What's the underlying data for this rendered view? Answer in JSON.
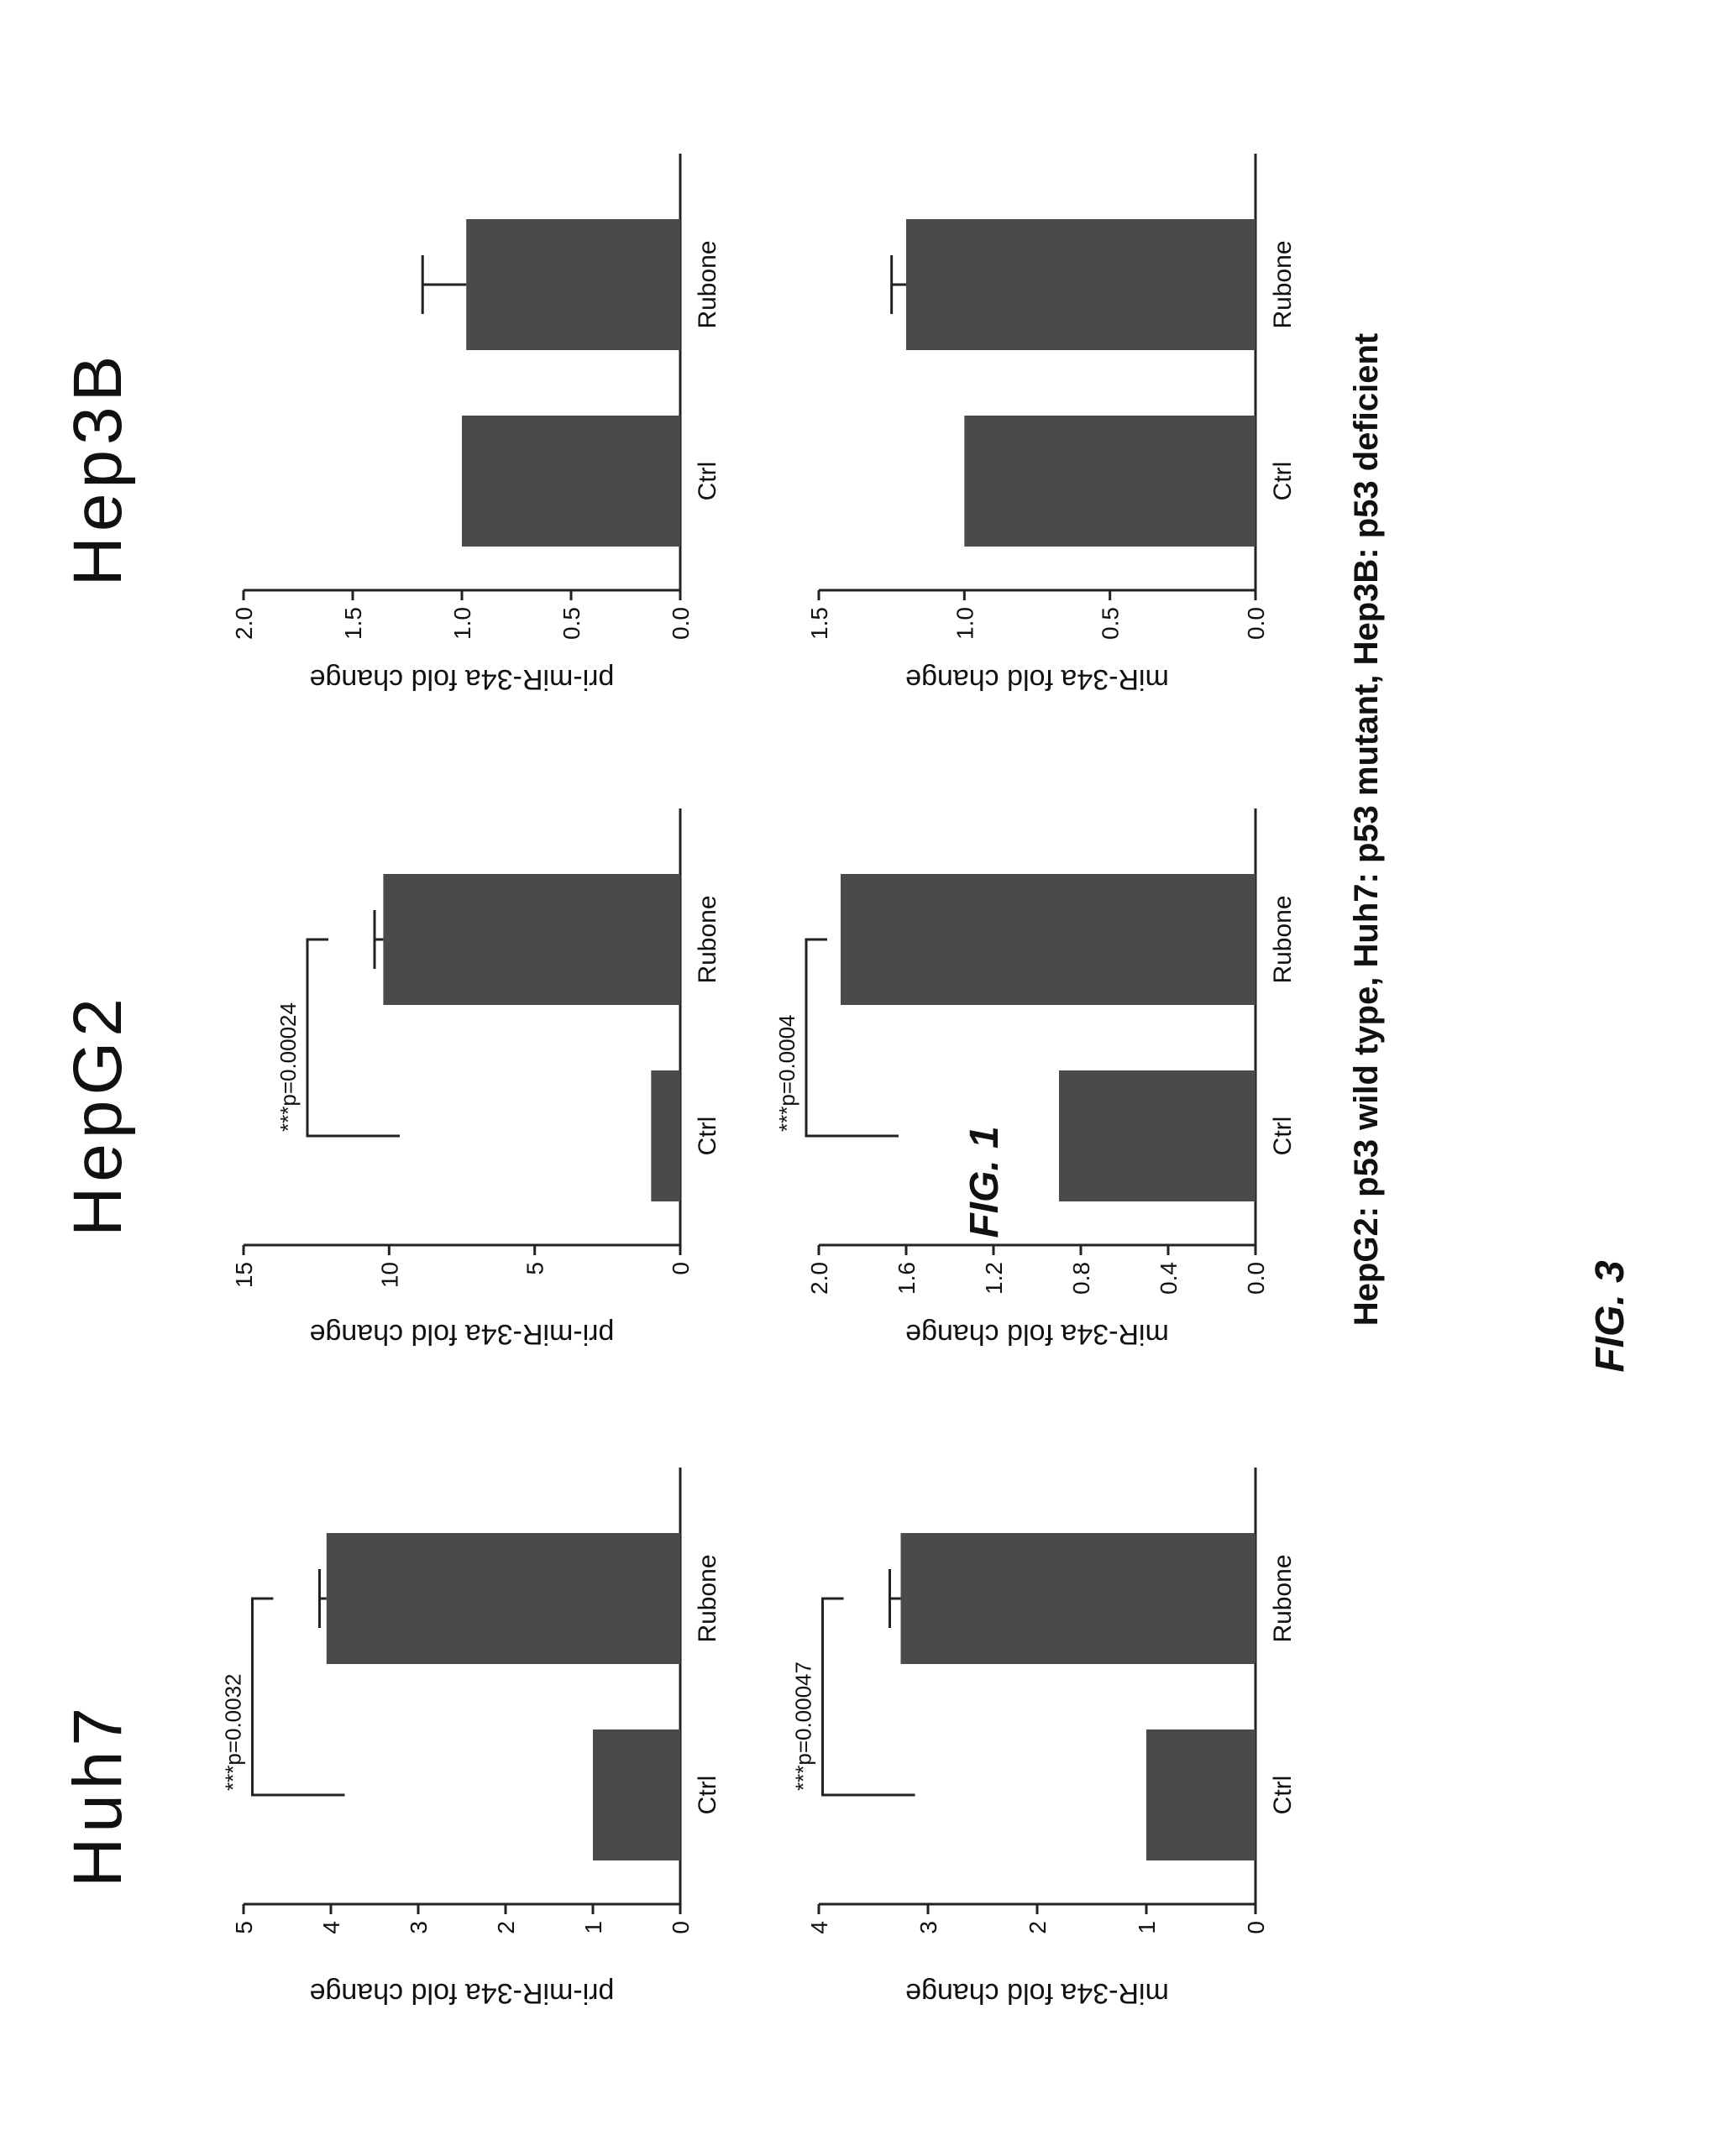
{
  "figure": {
    "caption": "HepG2: p53 wild type, Huh7: p53 mutant, Hep3B: p53 deficient",
    "figure_label": "FIG. 3",
    "overlay_label": "FIG. 1",
    "column_titles": [
      "Huh7",
      "HepG2",
      "Hep3B"
    ]
  },
  "colors": {
    "bar": "#4a4a4a",
    "axis": "#222222",
    "text": "#111111"
  },
  "chart_data": [
    {
      "type": "bar",
      "title": "Huh7",
      "ylabel": "pri-miR-34a fold change",
      "categories": [
        "Ctrl",
        "Rubone"
      ],
      "values": [
        1.0,
        4.05
      ],
      "errors": [
        0,
        0.08
      ],
      "ylim": [
        0,
        5
      ],
      "yticks": [
        "0",
        "1",
        "2",
        "3",
        "4",
        "5"
      ],
      "annotation": "***p=0.0032",
      "grid": false
    },
    {
      "type": "bar",
      "title": "HepG2",
      "ylabel": "pri-miR-34a fold change",
      "categories": [
        "Ctrl",
        "Rubone"
      ],
      "values": [
        1.0,
        10.2
      ],
      "errors": [
        0,
        0.3
      ],
      "ylim": [
        0,
        15
      ],
      "yticks": [
        "0",
        "5",
        "10",
        "15"
      ],
      "annotation": "***p=0.00024",
      "grid": false
    },
    {
      "type": "bar",
      "title": "Hep3B",
      "ylabel": "pri-miR-34a fold change",
      "categories": [
        "Ctrl",
        "Rubone"
      ],
      "values": [
        1.0,
        0.98
      ],
      "errors": [
        0,
        0.2
      ],
      "ylim": [
        0,
        2.0
      ],
      "yticks": [
        "0.0",
        "0.5",
        "1.0",
        "1.5",
        "2.0"
      ],
      "annotation": "",
      "grid": false
    },
    {
      "type": "bar",
      "title": "Huh7",
      "ylabel": "miR-34a fold change",
      "categories": [
        "Ctrl",
        "Rubone"
      ],
      "values": [
        1.0,
        3.25
      ],
      "errors": [
        0,
        0.1
      ],
      "ylim": [
        0,
        4
      ],
      "yticks": [
        "0",
        "1",
        "2",
        "3",
        "4"
      ],
      "annotation": "***p=0.00047",
      "grid": false
    },
    {
      "type": "bar",
      "title": "HepG2",
      "ylabel": "miR-34a fold change",
      "categories": [
        "Ctrl",
        "Rubone"
      ],
      "values": [
        0.9,
        1.9
      ],
      "errors": [
        0,
        0
      ],
      "ylim": [
        0,
        2.0
      ],
      "yticks": [
        "0.0",
        "0.4",
        "0.8",
        "1.2",
        "1.6",
        "2.0"
      ],
      "annotation": "***p=0.0004",
      "grid": false
    },
    {
      "type": "bar",
      "title": "Hep3B",
      "ylabel": "miR-34a fold change",
      "categories": [
        "Ctrl",
        "Rubone"
      ],
      "values": [
        1.0,
        1.2
      ],
      "errors": [
        0,
        0.05
      ],
      "ylim": [
        0,
        1.5
      ],
      "yticks": [
        "0.0",
        "0.5",
        "1.0",
        "1.5"
      ],
      "annotation": "",
      "grid": false
    }
  ]
}
